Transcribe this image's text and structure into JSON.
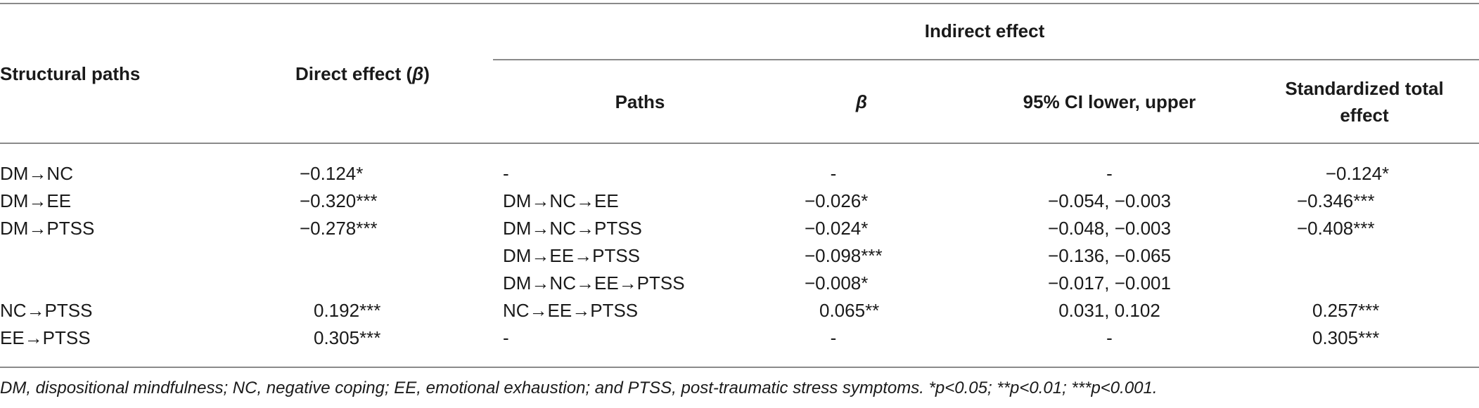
{
  "headers": {
    "structural_paths": "Structural paths",
    "direct_effect_prefix": "Direct effect (",
    "direct_effect_beta": "β",
    "direct_effect_suffix": ")",
    "indirect_effect": "Indirect effect",
    "paths": "Paths",
    "beta": "β",
    "ci": "95% CI lower, upper",
    "total_line1": "Standardized total",
    "total_line2": "effect"
  },
  "rows": [
    {
      "structural": "DM→NC",
      "direct": "−0.124*",
      "path": "-",
      "beta": "-",
      "ci": "-",
      "total": "−0.124*"
    },
    {
      "structural": "DM→EE",
      "direct": "−0.320***",
      "path": "DM→NC→EE",
      "beta": "−0.026*",
      "ci": "−0.054, −0.003",
      "total": "−0.346***"
    },
    {
      "structural": "DM→PTSS",
      "direct": "−0.278***",
      "path": "DM→NC→PTSS",
      "beta": "−0.024*",
      "ci": "−0.048, −0.003",
      "total": "−0.408***"
    },
    {
      "structural": "",
      "direct": "",
      "path": "DM→EE→PTSS",
      "beta": "−0.098***",
      "ci": "−0.136, −0.065",
      "total": ""
    },
    {
      "structural": "",
      "direct": "",
      "path": "DM→NC→EE→PTSS",
      "beta": "−0.008*",
      "ci": "−0.017, −0.001",
      "total": ""
    },
    {
      "structural": "NC→PTSS",
      "direct": "0.192***",
      "path": "NC→EE→PTSS",
      "beta": "0.065**",
      "ci": "0.031, 0.102",
      "total": "0.257***"
    },
    {
      "structural": "EE→PTSS",
      "direct": "0.305***",
      "path": "-",
      "beta": "-",
      "ci": "-",
      "total": "0.305***"
    }
  ],
  "footnote": "DM, dispositional mindfulness; NC, negative coping; EE, emotional exhaustion; and PTSS, post-traumatic stress symptoms.  *p<0.05; **p<0.01; ***p<0.001."
}
